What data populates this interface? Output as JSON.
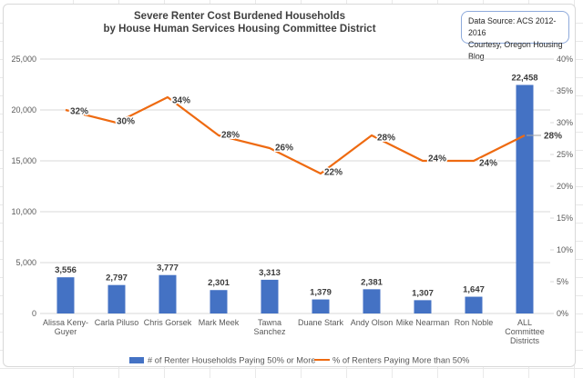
{
  "title": {
    "line1": "Severe Renter Cost Burdened Households",
    "line2": "by House Human Services Housing Committee District"
  },
  "source_note": {
    "line1": "Data Source: ACS 2012-2016",
    "line2": "Courtesy, Oregon Housing Blog"
  },
  "chart_data": {
    "type": "bar",
    "categories": [
      "Alissa Keny-\nGuyer",
      "Carla Piluso",
      "Chris Gorsek",
      "Mark Meek",
      "Tawna\nSanchez",
      "Duane Stark",
      "Andy Olson",
      "Mike Nearman",
      "Ron Noble",
      "ALL\nCommittee\nDistricts"
    ],
    "series": [
      {
        "name": "# of Renter Households Paying 50% or More",
        "type": "bar",
        "axis": "left",
        "values": [
          3556,
          2797,
          3777,
          2301,
          3313,
          1379,
          2381,
          1307,
          1647,
          22458
        ],
        "labels": [
          "3,556",
          "2,797",
          "3,777",
          "2,301",
          "3,313",
          "1,379",
          "2,381",
          "1,307",
          "1,647",
          "22,458"
        ]
      },
      {
        "name": "% of Renters Paying More than 50%",
        "type": "line",
        "axis": "right",
        "values": [
          0.32,
          0.3,
          0.34,
          0.28,
          0.26,
          0.22,
          0.28,
          0.24,
          0.24,
          0.28
        ],
        "labels": [
          "32%",
          "30%",
          "34%",
          "28%",
          "26%",
          "22%",
          "28%",
          "24%",
          "24%",
          "28%"
        ]
      }
    ],
    "left_axis": {
      "min": 0,
      "max": 25000,
      "step": 5000,
      "tick_labels": [
        "0",
        "5,000",
        "10,000",
        "15,000",
        "20,000",
        "25,000"
      ]
    },
    "right_axis": {
      "min": 0,
      "max": 0.4,
      "step": 0.05,
      "tick_labels": [
        "0%",
        "5%",
        "10%",
        "15%",
        "20%",
        "25%",
        "30%",
        "35%",
        "40%"
      ]
    },
    "grid": true,
    "legend_position": "bottom"
  },
  "colors": {
    "bar": "#4472C4",
    "line": "#EE6A11",
    "grid": "#D9D9D9",
    "axis_text": "#595959",
    "data_label": "#3B3B3B",
    "leader": "#A6A6A6"
  }
}
